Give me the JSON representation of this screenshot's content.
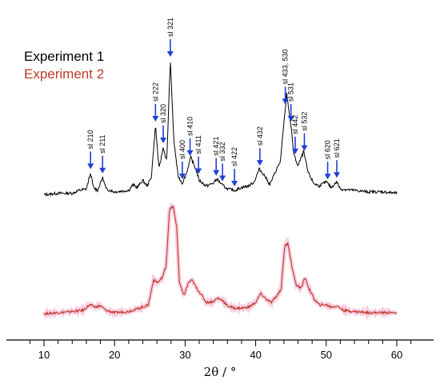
{
  "chart_data": {
    "type": "line",
    "xlabel": "2θ / °",
    "xlim": [
      8,
      63
    ],
    "xticks": [
      10,
      20,
      30,
      40,
      50,
      60
    ],
    "grid": false,
    "legend_position": "top-left",
    "series": [
      {
        "name": "Experiment 1",
        "color": "#000000",
        "points": [
          [
            10,
            0.02
          ],
          [
            12,
            0.03
          ],
          [
            14,
            0.03
          ],
          [
            15,
            0.05
          ],
          [
            16,
            0.06
          ],
          [
            16.6,
            0.17
          ],
          [
            17,
            0.07
          ],
          [
            17.6,
            0.05
          ],
          [
            18.3,
            0.14
          ],
          [
            18.8,
            0.06
          ],
          [
            20,
            0.04
          ],
          [
            22,
            0.05
          ],
          [
            22.6,
            0.09
          ],
          [
            23.2,
            0.07
          ],
          [
            24,
            0.12
          ],
          [
            24.6,
            0.08
          ],
          [
            25.2,
            0.14
          ],
          [
            25.8,
            0.5
          ],
          [
            26.3,
            0.2
          ],
          [
            26.9,
            0.35
          ],
          [
            27.4,
            0.25
          ],
          [
            27.9,
            0.95
          ],
          [
            28.4,
            0.4
          ],
          [
            29,
            0.15
          ],
          [
            29.6,
            0.1
          ],
          [
            30.2,
            0.17
          ],
          [
            30.8,
            0.28
          ],
          [
            31.5,
            0.2
          ],
          [
            32,
            0.12
          ],
          [
            33,
            0.08
          ],
          [
            34,
            0.1
          ],
          [
            34.5,
            0.13
          ],
          [
            35.2,
            0.09
          ],
          [
            36,
            0.06
          ],
          [
            37,
            0.05
          ],
          [
            38,
            0.07
          ],
          [
            39,
            0.08
          ],
          [
            39.8,
            0.11
          ],
          [
            40.5,
            0.2
          ],
          [
            41.3,
            0.15
          ],
          [
            42,
            0.09
          ],
          [
            42.8,
            0.18
          ],
          [
            43.5,
            0.25
          ],
          [
            44,
            0.52
          ],
          [
            44.4,
            0.72
          ],
          [
            45,
            0.5
          ],
          [
            45.4,
            0.3
          ],
          [
            46,
            0.22
          ],
          [
            46.8,
            0.32
          ],
          [
            47.4,
            0.18
          ],
          [
            48.2,
            0.1
          ],
          [
            49,
            0.08
          ],
          [
            50,
            0.11
          ],
          [
            50.7,
            0.07
          ],
          [
            51.5,
            0.11
          ],
          [
            52,
            0.06
          ],
          [
            54,
            0.05
          ],
          [
            56,
            0.04
          ],
          [
            58,
            0.04
          ],
          [
            60,
            0.03
          ]
        ]
      },
      {
        "name": "Experiment 2",
        "color": "#c0392b",
        "points": [
          [
            10,
            0.02
          ],
          [
            12,
            0.03
          ],
          [
            14,
            0.04
          ],
          [
            15.5,
            0.05
          ],
          [
            16.5,
            0.1
          ],
          [
            17.2,
            0.08
          ],
          [
            18,
            0.09
          ],
          [
            18.8,
            0.05
          ],
          [
            20,
            0.03
          ],
          [
            22,
            0.04
          ],
          [
            23,
            0.06
          ],
          [
            24,
            0.08
          ],
          [
            24.8,
            0.1
          ],
          [
            25.5,
            0.32
          ],
          [
            26.2,
            0.3
          ],
          [
            26.8,
            0.35
          ],
          [
            27.3,
            0.45
          ],
          [
            27.8,
            0.95
          ],
          [
            28.3,
            0.98
          ],
          [
            28.8,
            0.8
          ],
          [
            29.2,
            0.3
          ],
          [
            29.8,
            0.18
          ],
          [
            30.5,
            0.3
          ],
          [
            31,
            0.32
          ],
          [
            31.6,
            0.25
          ],
          [
            32.2,
            0.2
          ],
          [
            33,
            0.12
          ],
          [
            34,
            0.13
          ],
          [
            34.6,
            0.16
          ],
          [
            35.3,
            0.14
          ],
          [
            36,
            0.09
          ],
          [
            37,
            0.07
          ],
          [
            38,
            0.07
          ],
          [
            39,
            0.08
          ],
          [
            40,
            0.12
          ],
          [
            40.7,
            0.2
          ],
          [
            41.5,
            0.15
          ],
          [
            42.2,
            0.12
          ],
          [
            43,
            0.18
          ],
          [
            43.6,
            0.24
          ],
          [
            44.1,
            0.62
          ],
          [
            44.6,
            0.65
          ],
          [
            45.1,
            0.45
          ],
          [
            45.7,
            0.28
          ],
          [
            46.4,
            0.25
          ],
          [
            47,
            0.34
          ],
          [
            47.6,
            0.24
          ],
          [
            48.3,
            0.15
          ],
          [
            49,
            0.1
          ],
          [
            50,
            0.1
          ],
          [
            50.7,
            0.08
          ],
          [
            51.5,
            0.09
          ],
          [
            52.5,
            0.05
          ],
          [
            54,
            0.04
          ],
          [
            56,
            0.03
          ],
          [
            58,
            0.03
          ],
          [
            60,
            0.03
          ]
        ]
      }
    ],
    "annotations": [
      {
        "label": "sl 210",
        "x": 16.6
      },
      {
        "label": "sl 211",
        "x": 18.3
      },
      {
        "label": "sl 222",
        "x": 25.8
      },
      {
        "label": "sl 320",
        "x": 26.9
      },
      {
        "label": "sl 321",
        "x": 27.9
      },
      {
        "label": "sl 400",
        "x": 29.6
      },
      {
        "label": "sl 410",
        "x": 30.7
      },
      {
        "label": "sl 411",
        "x": 31.9
      },
      {
        "label": "sl 421",
        "x": 34.4
      },
      {
        "label": "sl 332",
        "x": 35.3
      },
      {
        "label": "sl 422",
        "x": 37.0
      },
      {
        "label": "sl 432",
        "x": 40.6
      },
      {
        "label": "sl 433, 530",
        "x": 44.2
      },
      {
        "label": "sl 531",
        "x": 45.0
      },
      {
        "label": "sl 442",
        "x": 45.6
      },
      {
        "label": "sl 532",
        "x": 46.9
      },
      {
        "label": "sl 620",
        "x": 50.2
      },
      {
        "label": "sl 621",
        "x": 51.5
      }
    ]
  }
}
